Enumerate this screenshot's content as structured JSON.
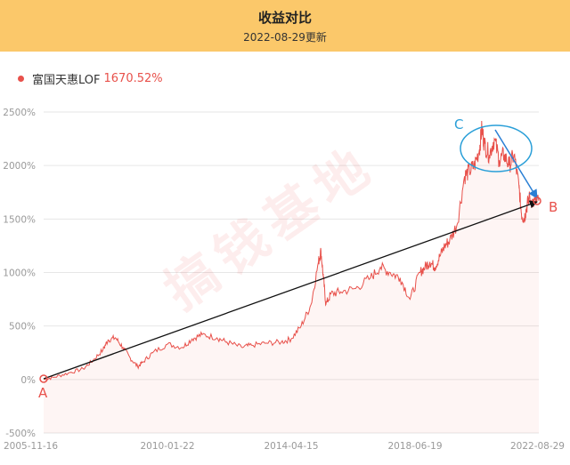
{
  "header": {
    "title": "收益对比",
    "subtitle": "2022-08-29更新"
  },
  "legend": {
    "name": "富国天惠LOF",
    "value": "1670.52%",
    "color": "#e8514b"
  },
  "watermark": "搞钱基地",
  "annotations": {
    "a": "A",
    "b": "B",
    "c": "C"
  },
  "chart_data": {
    "type": "area",
    "ylim": [
      -500,
      2500
    ],
    "yticks": [
      -500,
      0,
      500,
      1000,
      1500,
      2000,
      2500
    ],
    "ytick_labels": [
      "-500%",
      "0%",
      "500%",
      "1000%",
      "1500%",
      "2000%",
      "2500%"
    ],
    "xticks": [
      "2005-11-16",
      "2010-01-22",
      "2014-04-15",
      "2018-06-19",
      "2022-08-29"
    ],
    "grid": true,
    "series": [
      {
        "name": "富国天惠LOF",
        "color": "#e8514b",
        "x": [
          0,
          0.02,
          0.05,
          0.08,
          0.1,
          0.12,
          0.13,
          0.145,
          0.16,
          0.175,
          0.19,
          0.2,
          0.22,
          0.25,
          0.28,
          0.3,
          0.32,
          0.35,
          0.37,
          0.4,
          0.42,
          0.45,
          0.48,
          0.5,
          0.52,
          0.54,
          0.555,
          0.56,
          0.565,
          0.57,
          0.58,
          0.6,
          0.63,
          0.66,
          0.68,
          0.7,
          0.72,
          0.74,
          0.76,
          0.77,
          0.78,
          0.79,
          0.8,
          0.81,
          0.82,
          0.835,
          0.85,
          0.86,
          0.87,
          0.88,
          0.885,
          0.89,
          0.9,
          0.91,
          0.92,
          0.93,
          0.94,
          0.95,
          0.96,
          0.965,
          0.97,
          0.975,
          0.98,
          0.99,
          1.0
        ],
        "y": [
          0,
          20,
          60,
          100,
          180,
          280,
          370,
          390,
          300,
          200,
          120,
          160,
          250,
          330,
          300,
          380,
          420,
          390,
          350,
          300,
          320,
          340,
          350,
          380,
          500,
          700,
          1100,
          1200,
          950,
          700,
          800,
          820,
          850,
          950,
          1050,
          1000,
          950,
          750,
          1000,
          1050,
          1100,
          1050,
          1150,
          1250,
          1300,
          1450,
          1900,
          1950,
          2000,
          2150,
          2350,
          2200,
          2100,
          2250,
          2050,
          2100,
          2000,
          2100,
          1800,
          1550,
          1500,
          1600,
          1700,
          1650,
          1670.52
        ]
      }
    ]
  }
}
